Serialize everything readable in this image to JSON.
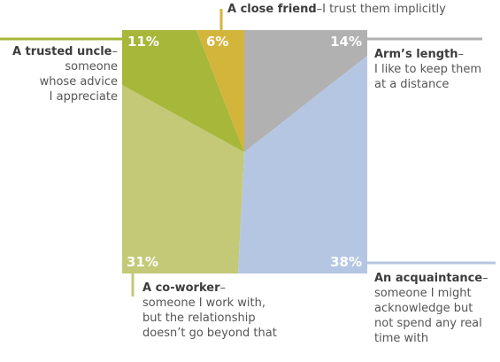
{
  "chart_data": {
    "type": "treemap",
    "segments": [
      {
        "key": "uncle",
        "value": 11,
        "value_label": "11%",
        "title": "A trusted uncle",
        "desc": [
          "someone",
          "whose advice",
          "I appreciate"
        ],
        "color": "#a6b73a"
      },
      {
        "key": "friend",
        "value": 6,
        "value_label": "6%",
        "title": "A close friend",
        "desc": [
          "I trust them implicitly"
        ],
        "color": "#d3b53c"
      },
      {
        "key": "arms",
        "value": 14,
        "value_label": "14%",
        "title": "Arm’s length",
        "desc": [
          "I like to keep them",
          "at a distance"
        ],
        "color": "#b1b1b1"
      },
      {
        "key": "coworker",
        "value": 31,
        "value_label": "31%",
        "title": "A co-worker",
        "desc": [
          "someone I work with,",
          "but the relationship",
          "doesn’t go beyond that"
        ],
        "color": "#c3c977"
      },
      {
        "key": "acq",
        "value": 38,
        "value_label": "38%",
        "title": "An acquaintance",
        "desc": [
          "someone I might",
          "acknowledge but",
          "not spend any real",
          "time with"
        ],
        "color": "#b5c6e3"
      }
    ],
    "dash": "–"
  }
}
